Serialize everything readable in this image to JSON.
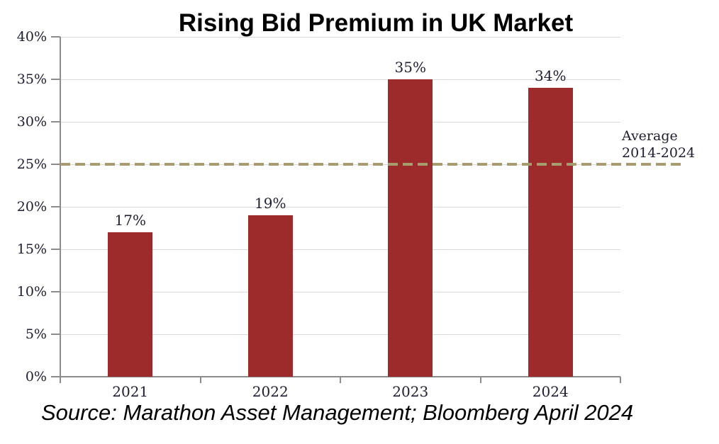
{
  "chart_data": {
    "type": "bar",
    "title": "Rising Bid Premium in UK Market",
    "categories": [
      "2021",
      "2022",
      "2023",
      "2024"
    ],
    "values": [
      17,
      19,
      35,
      34
    ],
    "bar_labels": [
      "17%",
      "19%",
      "35%",
      "34%"
    ],
    "xlabel": "",
    "ylabel": "",
    "ylim": [
      0,
      40
    ],
    "ytick_step": 5,
    "ytick_suffix": "%",
    "grid": true,
    "legend": "none",
    "average_line": {
      "value": 25,
      "label_line1": "Average",
      "label_line2": "2014-2024"
    },
    "colors": {
      "bar": "#9E2B2B",
      "average_line": "#A69C6F",
      "axis": "#8C8C8C",
      "gridline": "#D9D9D9",
      "tick_label": "#1E1E30",
      "title": "#000000",
      "source": "#000000"
    }
  },
  "source_note": "Source: Marathon Asset Management; Bloomberg April 2024"
}
